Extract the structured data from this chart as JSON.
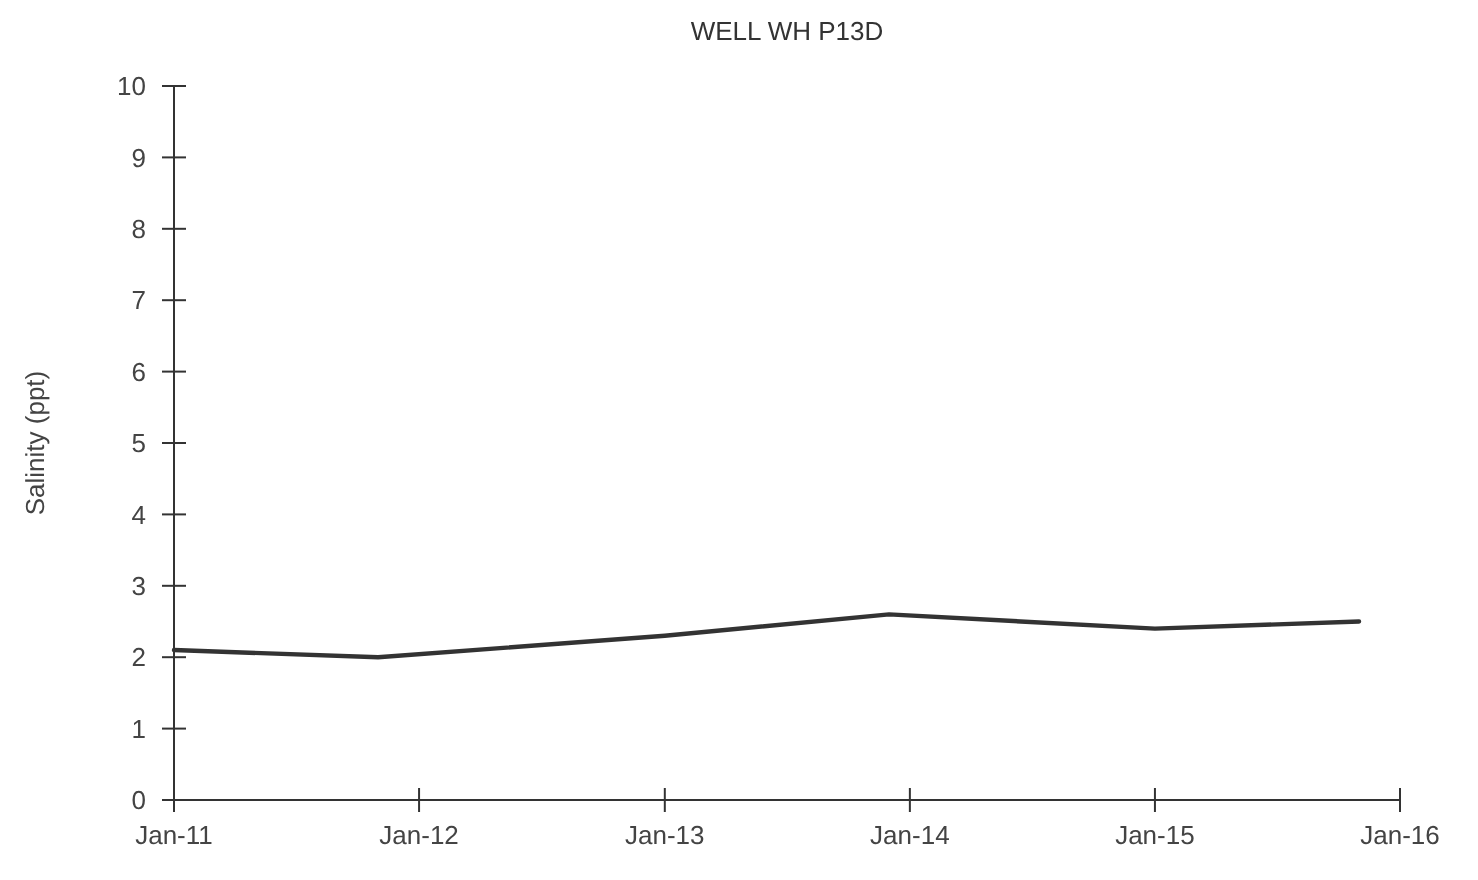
{
  "chart_data": {
    "type": "line",
    "title": "WELL WH P13D",
    "ylabel": "Salinity (ppt)",
    "x": [
      "2011-01",
      "2011-11",
      "2013-01",
      "2013-12",
      "2015-01",
      "2015-11"
    ],
    "series": [
      {
        "color": "#333333",
        "values": [
          2.1,
          2.0,
          2.3,
          2.6,
          2.4,
          2.5
        ]
      }
    ],
    "xlim": [
      "2011-01",
      "2016-01"
    ],
    "xticks": [
      {
        "value": "2011-01",
        "label": "Jan-11"
      },
      {
        "value": "2012-01",
        "label": "Jan-12"
      },
      {
        "value": "2013-01",
        "label": "Jan-13"
      },
      {
        "value": "2014-01",
        "label": "Jan-14"
      },
      {
        "value": "2015-01",
        "label": "Jan-15"
      },
      {
        "value": "2016-01",
        "label": "Jan-16"
      }
    ],
    "ylim": [
      0,
      10
    ],
    "yticks": [
      0,
      1,
      2,
      3,
      4,
      5,
      6,
      7,
      8,
      9,
      10
    ],
    "grid": false,
    "marker": "none",
    "line_style": "solid"
  }
}
